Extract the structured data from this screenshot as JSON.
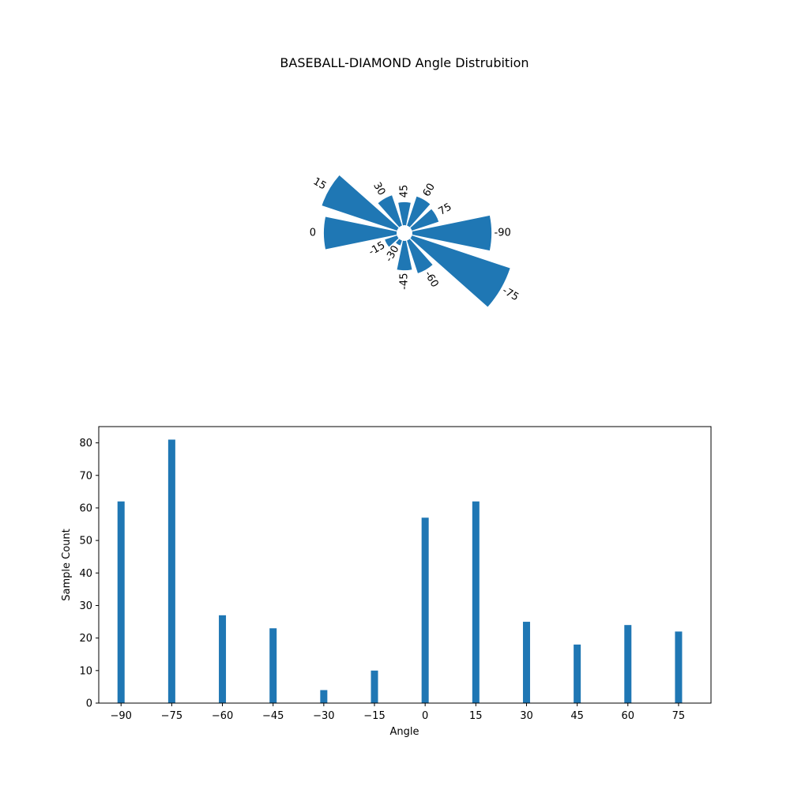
{
  "chart_data": [
    {
      "type": "polar-bar",
      "title": "BASEBALL-DIAMOND Angle Distrubition",
      "categories": [
        -90,
        -75,
        -60,
        -45,
        -30,
        -15,
        0,
        15,
        30,
        45,
        60,
        75
      ],
      "category_labels": [
        "-90",
        "-75",
        "-60",
        "-45",
        "-30",
        "-15",
        "0",
        "15",
        "30",
        "45",
        "60",
        "75"
      ],
      "values": [
        62,
        81,
        27,
        23,
        4,
        10,
        57,
        62,
        25,
        18,
        24,
        22
      ],
      "color": "#1f77b4",
      "grid": false
    },
    {
      "type": "bar",
      "title": "",
      "xlabel": "Angle",
      "ylabel": "Sample Count",
      "categories": [
        -90,
        -75,
        -60,
        -45,
        -30,
        -15,
        0,
        15,
        30,
        45,
        60,
        75
      ],
      "x_tick_labels": [
        "−90",
        "−75",
        "−60",
        "−45",
        "−30",
        "−15",
        "0",
        "15",
        "30",
        "45",
        "60",
        "75"
      ],
      "values": [
        62,
        81,
        27,
        23,
        4,
        10,
        57,
        62,
        25,
        18,
        24,
        22
      ],
      "y_ticks": [
        0,
        10,
        20,
        30,
        40,
        50,
        60,
        70,
        80
      ],
      "xlim": [
        -96.6,
        84.6
      ],
      "ylim": [
        0,
        85
      ],
      "color": "#1f77b4",
      "grid": false
    }
  ]
}
